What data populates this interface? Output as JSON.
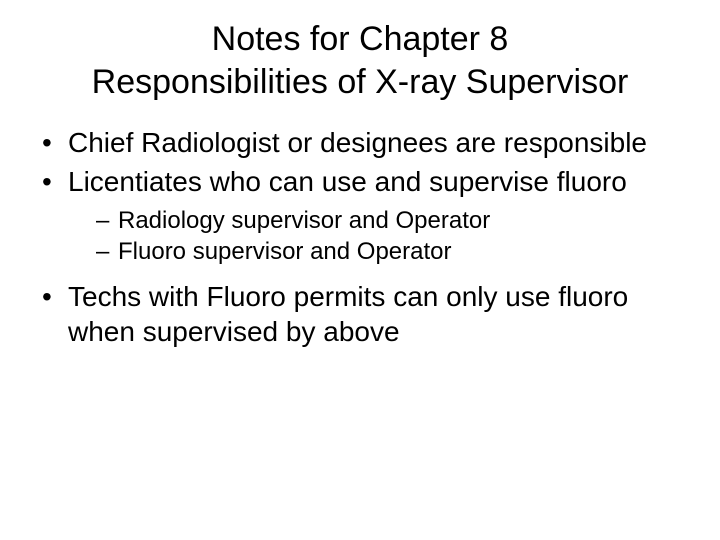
{
  "title_line1": "Notes for Chapter 8",
  "title_line2": "Responsibilities of X-ray Supervisor",
  "bullets": {
    "b1": "Chief Radiologist or designees are responsible",
    "b2": "Licentiates who can use and supervise fluoro",
    "b2_sub1": "Radiology supervisor and Operator",
    "b2_sub2": "Fluoro supervisor and Operator",
    "b3": "Techs with Fluoro permits can only use fluoro when supervised by above"
  }
}
